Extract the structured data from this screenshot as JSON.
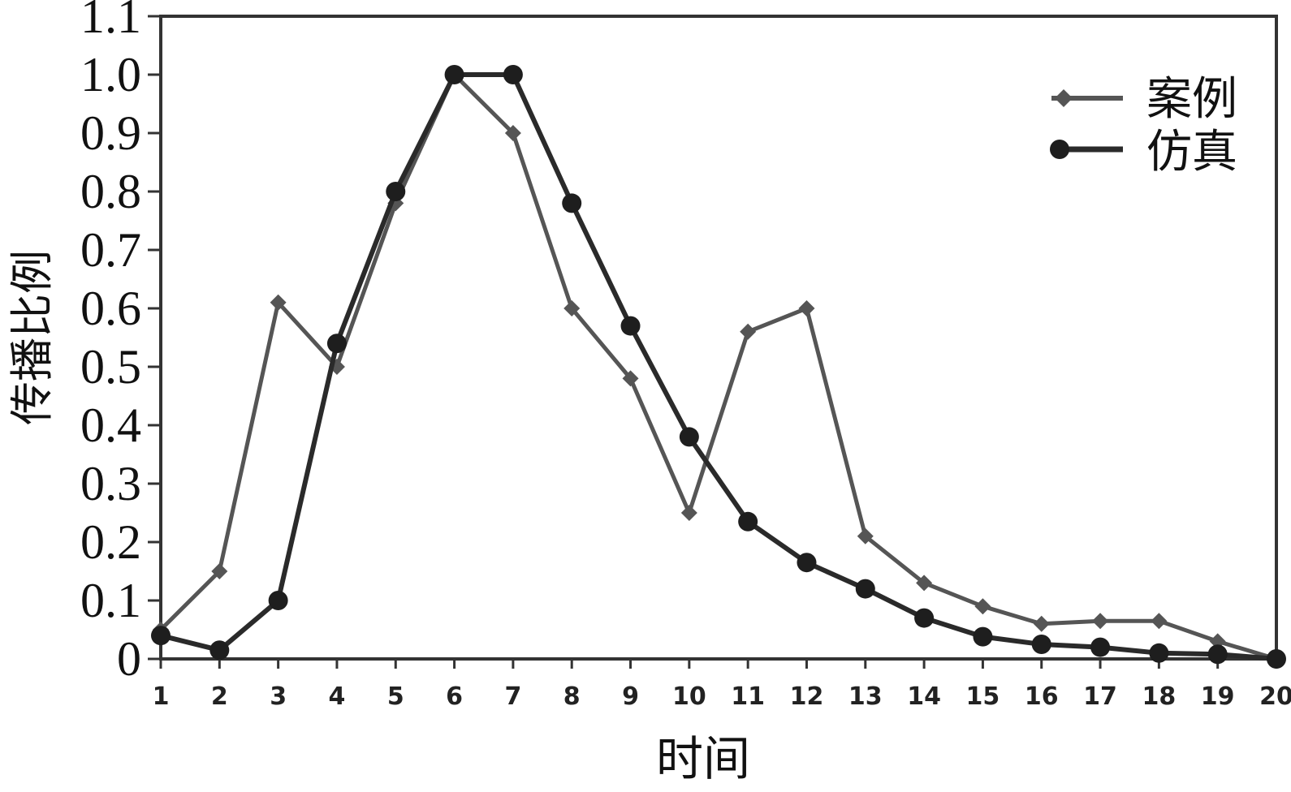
{
  "chart_data": {
    "type": "line",
    "xlabel": "时间",
    "ylabel": "传播比例",
    "x": [
      1,
      2,
      3,
      4,
      5,
      6,
      7,
      8,
      9,
      10,
      11,
      12,
      13,
      14,
      15,
      16,
      17,
      18,
      19,
      20
    ],
    "xlim": [
      1,
      20
    ],
    "ylim": [
      0,
      1.1
    ],
    "yticks": [
      "0",
      "0.1",
      "0.2",
      "0.3",
      "0.4",
      "0.5",
      "0.6",
      "0.7",
      "0.8",
      "0.9",
      "1.0",
      "1.1"
    ],
    "legend_position": "top-right",
    "grid": false,
    "series": [
      {
        "name": "案例",
        "marker": "diamond",
        "color": "#555555",
        "values": [
          0.05,
          0.15,
          0.61,
          0.5,
          0.78,
          1.0,
          0.9,
          0.6,
          0.48,
          0.25,
          0.56,
          0.6,
          0.21,
          0.13,
          0.09,
          0.06,
          0.065,
          0.065,
          0.03,
          0.0
        ]
      },
      {
        "name": "仿真",
        "marker": "circle",
        "color": "#2a2a2a",
        "values": [
          0.04,
          0.015,
          0.1,
          0.54,
          0.8,
          1.0,
          1.0,
          0.78,
          0.57,
          0.38,
          0.235,
          0.165,
          0.12,
          0.07,
          0.038,
          0.025,
          0.02,
          0.01,
          0.008,
          0.0
        ]
      }
    ]
  }
}
